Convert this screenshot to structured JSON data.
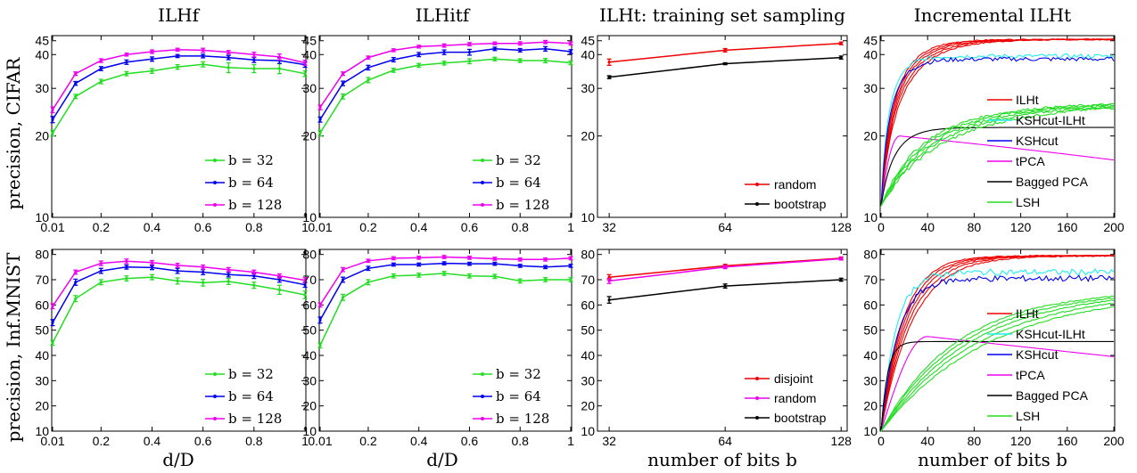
{
  "figure": {
    "column_titles": [
      "ILHf",
      "ILHitf",
      "ILHt: training set sampling",
      "Incremental ILHt"
    ],
    "row_labels": [
      "precision, CIFAR",
      "precision, Inf.MNIST"
    ],
    "xlabels": [
      "d/D",
      "d/D",
      "number of bits b",
      "number of bits b"
    ]
  },
  "colors": {
    "green": "#22dd22",
    "blue": "#0000ee",
    "magenta": "#ee00ee",
    "red": "#ee0000",
    "black": "#000000",
    "cyan": "#22eeee"
  },
  "chart_data": [
    {
      "id": "ilhf_cifar",
      "type": "line",
      "xlabel": "",
      "ylabel": "precision, CIFAR",
      "x": [
        0.01,
        0.1,
        0.2,
        0.3,
        0.4,
        0.5,
        0.6,
        0.7,
        0.8,
        0.9,
        1.0
      ],
      "xticks": [
        0.01,
        0.2,
        0.4,
        0.6,
        0.8,
        1
      ],
      "xticklabels": [
        "0.01",
        "0.2",
        "0.4",
        "0.6",
        "0.8",
        "1"
      ],
      "xlim": [
        0.01,
        1
      ],
      "ylim": [
        10,
        47
      ],
      "yscale": "log",
      "yticks": [
        10,
        20,
        30,
        40,
        45
      ],
      "yticklabels": [
        "10",
        "20",
        "30",
        "40",
        "45"
      ],
      "legend": "lower-right",
      "series": [
        {
          "name": "b = 32",
          "color": "#22dd22",
          "values": [
            20.5,
            28.0,
            31.8,
            34.0,
            34.8,
            36.0,
            36.8,
            35.8,
            35.5,
            35.5,
            34.0
          ],
          "err": [
            0.5,
            0.5,
            0.6,
            0.6,
            0.7,
            0.7,
            0.8,
            1.5,
            1.2,
            1.5,
            0.8
          ]
        },
        {
          "name": "b = 64",
          "color": "#0000ee",
          "values": [
            23.0,
            31.3,
            35.5,
            37.5,
            38.5,
            39.5,
            39.5,
            39.0,
            38.2,
            38.0,
            36.7
          ],
          "err": [
            0.6,
            0.5,
            0.6,
            0.7,
            0.7,
            0.5,
            0.6,
            0.7,
            0.8,
            0.9,
            0.8
          ]
        },
        {
          "name": "b = 128",
          "color": "#ee00ee",
          "values": [
            25.0,
            34.0,
            38.0,
            40.0,
            41.0,
            41.7,
            41.5,
            40.8,
            40.0,
            39.2,
            37.3
          ],
          "err": [
            0.6,
            0.5,
            0.6,
            0.5,
            0.6,
            0.5,
            0.7,
            0.6,
            0.8,
            1.0,
            0.8
          ]
        }
      ]
    },
    {
      "id": "ilhitf_cifar",
      "type": "line",
      "xlabel": "",
      "ylabel": "",
      "x": [
        0.01,
        0.1,
        0.2,
        0.3,
        0.4,
        0.5,
        0.6,
        0.7,
        0.8,
        0.9,
        1.0
      ],
      "xticks": [
        0.01,
        0.2,
        0.4,
        0.6,
        0.8,
        1
      ],
      "xticklabels": [
        "0.01",
        "0.2",
        "0.4",
        "0.6",
        "0.8",
        "1"
      ],
      "xlim": [
        0.01,
        1
      ],
      "ylim": [
        10,
        47
      ],
      "yscale": "log",
      "yticks": [
        10,
        20,
        30,
        40,
        45
      ],
      "yticklabels": [
        "10",
        "20",
        "30",
        "40",
        "45"
      ],
      "legend": "lower-right",
      "series": [
        {
          "name": "b = 32",
          "color": "#22dd22",
          "values": [
            20.5,
            28.0,
            32.2,
            35.0,
            36.5,
            37.2,
            37.8,
            38.5,
            38.0,
            38.0,
            37.3
          ],
          "err": [
            0.5,
            0.6,
            0.7,
            0.6,
            0.6,
            0.6,
            0.8,
            0.6,
            0.6,
            0.7,
            0.6
          ]
        },
        {
          "name": "b = 64",
          "color": "#0000ee",
          "values": [
            23.0,
            31.3,
            35.8,
            38.3,
            40.0,
            40.8,
            40.8,
            42.0,
            41.5,
            42.0,
            41.0
          ],
          "err": [
            0.5,
            0.6,
            0.7,
            0.7,
            0.7,
            0.8,
            1.0,
            0.6,
            0.6,
            0.8,
            0.7
          ]
        },
        {
          "name": "b = 128",
          "color": "#ee00ee",
          "values": [
            25.5,
            34.0,
            39.0,
            41.5,
            42.8,
            43.2,
            43.7,
            44.0,
            44.0,
            44.5,
            44.0
          ],
          "err": [
            0.5,
            0.5,
            0.5,
            0.5,
            0.5,
            0.6,
            0.6,
            0.5,
            0.6,
            0.6,
            0.6
          ]
        }
      ]
    },
    {
      "id": "ilht_sampling_cifar",
      "type": "line",
      "xlabel": "",
      "ylabel": "",
      "x": [
        32,
        64,
        128
      ],
      "xscale": "log",
      "xticks": [
        32,
        64,
        128
      ],
      "xticklabels": [
        "32",
        "64",
        "128"
      ],
      "xlim": [
        30,
        132
      ],
      "ylim": [
        10,
        47
      ],
      "yscale": "log",
      "yticks": [
        10,
        20,
        30,
        40,
        45
      ],
      "yticklabels": [
        "10",
        "20",
        "30",
        "40",
        "45"
      ],
      "legend": "lower-right",
      "series": [
        {
          "name": "random",
          "color": "#ee0000",
          "values": [
            37.5,
            41.5,
            44.0
          ],
          "err": [
            1.0,
            0.6,
            0.5
          ]
        },
        {
          "name": "bootstrap",
          "color": "#000000",
          "values": [
            33.0,
            37.0,
            39.0
          ],
          "err": [
            0.4,
            0.3,
            0.5
          ]
        }
      ]
    },
    {
      "id": "incremental_cifar",
      "type": "line",
      "xlabel": "",
      "ylabel": "",
      "xlim": [
        0,
        200
      ],
      "xticks": [
        0,
        40,
        80,
        120,
        160,
        200
      ],
      "xticklabels": [
        "0",
        "40",
        "80",
        "120",
        "160",
        "200"
      ],
      "ylim": [
        10,
        47
      ],
      "yscale": "log",
      "yticks": [
        10,
        20,
        30,
        40,
        45
      ],
      "yticklabels": [
        "10",
        "20",
        "30",
        "40",
        "45"
      ],
      "legend": "right",
      "series": [
        {
          "name": "ILHt",
          "color": "#ee0000",
          "type": "saturating",
          "start": 11,
          "end": 45.5,
          "rate": 0.045,
          "runs": 5
        },
        {
          "name": "KSHcut-ILHt",
          "color": "#22eeee",
          "type": "saturating",
          "start": 11,
          "end": 39.5,
          "rate": 0.09,
          "runs": 1
        },
        {
          "name": "KSHcut",
          "color": "#0000ee",
          "type": "saturating",
          "start": 11,
          "end": 38.5,
          "rate": 0.08,
          "runs": 1
        },
        {
          "name": "tPCA",
          "color": "#ee00ee",
          "type": "peak",
          "start": 11,
          "peak": 20,
          "peak_at": 16,
          "end": 16.3
        },
        {
          "name": "Bagged PCA",
          "color": "#000000",
          "type": "saturating",
          "start": 11,
          "end": 21.5,
          "rate": 0.07,
          "runs": 1
        },
        {
          "name": "LSH",
          "color": "#22dd22",
          "type": "saturating",
          "start": 11,
          "end": 26.5,
          "rate": 0.016,
          "runs": 5
        }
      ]
    },
    {
      "id": "ilhf_mnist",
      "type": "line",
      "xlabel": "d/D",
      "ylabel": "precision, Inf.MNIST",
      "x": [
        0.01,
        0.1,
        0.2,
        0.3,
        0.4,
        0.5,
        0.6,
        0.7,
        0.8,
        0.9,
        1.0
      ],
      "xticks": [
        0.01,
        0.2,
        0.4,
        0.6,
        0.8,
        1
      ],
      "xticklabels": [
        "0.01",
        "0.2",
        "0.4",
        "0.6",
        "0.8",
        "1"
      ],
      "xlim": [
        0.01,
        1
      ],
      "ylim": [
        10,
        82
      ],
      "yticks": [
        10,
        20,
        30,
        40,
        50,
        60,
        70,
        80
      ],
      "yticklabels": [
        "10",
        "20",
        "30",
        "40",
        "50",
        "60",
        "70",
        "80"
      ],
      "legend": "lower-right",
      "series": [
        {
          "name": "b = 32",
          "color": "#22dd22",
          "values": [
            45.0,
            62.5,
            69.0,
            70.5,
            71.0,
            69.5,
            68.8,
            69.3,
            67.8,
            66.0,
            64.0
          ],
          "err": [
            1.0,
            1.2,
            1.0,
            1.0,
            1.0,
            1.2,
            1.3,
            1.2,
            1.2,
            1.8,
            1.5
          ]
        },
        {
          "name": "b = 64",
          "color": "#0000ee",
          "values": [
            53.0,
            69.0,
            73.5,
            75.0,
            74.8,
            73.5,
            73.0,
            72.0,
            71.5,
            70.0,
            68.0
          ],
          "err": [
            1.2,
            1.2,
            1.0,
            0.8,
            0.8,
            1.0,
            1.0,
            0.9,
            1.0,
            1.0,
            1.0
          ]
        },
        {
          "name": "b = 128",
          "color": "#ee00ee",
          "values": [
            59.5,
            73.0,
            76.5,
            77.3,
            76.8,
            75.7,
            75.0,
            74.0,
            73.0,
            71.5,
            69.8
          ],
          "err": [
            1.0,
            0.8,
            0.9,
            0.9,
            0.8,
            0.8,
            0.8,
            0.8,
            0.8,
            0.8,
            1.0
          ]
        }
      ]
    },
    {
      "id": "ilhitf_mnist",
      "type": "line",
      "xlabel": "d/D",
      "ylabel": "",
      "x": [
        0.01,
        0.1,
        0.2,
        0.3,
        0.4,
        0.5,
        0.6,
        0.7,
        0.8,
        0.9,
        1.0
      ],
      "xticks": [
        0.01,
        0.2,
        0.4,
        0.6,
        0.8,
        1
      ],
      "xticklabels": [
        "0.01",
        "0.2",
        "0.4",
        "0.6",
        "0.8",
        "1"
      ],
      "xlim": [
        0.01,
        1
      ],
      "ylim": [
        10,
        82
      ],
      "yticks": [
        10,
        20,
        30,
        40,
        50,
        60,
        70,
        80
      ],
      "yticklabels": [
        "10",
        "20",
        "30",
        "40",
        "50",
        "60",
        "70",
        "80"
      ],
      "legend": "lower-right",
      "series": [
        {
          "name": "b = 32",
          "color": "#22dd22",
          "values": [
            44.0,
            63.0,
            69.0,
            71.5,
            71.8,
            72.5,
            71.5,
            71.3,
            69.5,
            70.0,
            70.0
          ],
          "err": [
            1.0,
            1.2,
            1.0,
            0.8,
            0.8,
            0.8,
            0.8,
            0.8,
            0.8,
            0.8,
            0.8
          ]
        },
        {
          "name": "b = 64",
          "color": "#0000ee",
          "values": [
            54.0,
            70.0,
            74.5,
            76.0,
            76.0,
            76.5,
            76.3,
            76.3,
            75.5,
            75.0,
            75.5
          ],
          "err": [
            1.2,
            1.0,
            0.8,
            0.6,
            0.6,
            0.6,
            0.6,
            0.6,
            0.6,
            0.6,
            0.6
          ]
        },
        {
          "name": "b = 128",
          "color": "#ee00ee",
          "values": [
            60.0,
            74.0,
            77.5,
            78.5,
            78.7,
            79.0,
            78.7,
            78.3,
            78.0,
            78.0,
            78.5
          ],
          "err": [
            0.8,
            0.8,
            0.6,
            0.6,
            0.6,
            0.6,
            0.6,
            0.6,
            0.6,
            0.6,
            0.6
          ]
        }
      ]
    },
    {
      "id": "ilht_sampling_mnist",
      "type": "line",
      "xlabel": "number of bits b",
      "ylabel": "",
      "x": [
        32,
        64,
        128
      ],
      "xscale": "log",
      "xticks": [
        32,
        64,
        128
      ],
      "xticklabels": [
        "32",
        "64",
        "128"
      ],
      "xlim": [
        30,
        132
      ],
      "ylim": [
        10,
        82
      ],
      "yticks": [
        10,
        20,
        30,
        40,
        50,
        60,
        70,
        80
      ],
      "yticklabels": [
        "10",
        "20",
        "30",
        "40",
        "50",
        "60",
        "70",
        "80"
      ],
      "legend": "lower-right",
      "series": [
        {
          "name": "disjoint",
          "color": "#ee0000",
          "values": [
            71.0,
            75.5,
            78.5
          ],
          "err": [
            1.0,
            0.6,
            0.5
          ]
        },
        {
          "name": "random",
          "color": "#ee00ee",
          "values": [
            69.5,
            75.0,
            78.3
          ],
          "err": [
            1.0,
            0.6,
            0.5
          ]
        },
        {
          "name": "bootstrap",
          "color": "#000000",
          "values": [
            62.0,
            67.5,
            70.0
          ],
          "err": [
            1.3,
            0.8,
            0.6
          ]
        }
      ]
    },
    {
      "id": "incremental_mnist",
      "type": "line",
      "xlabel": "number of bits b",
      "ylabel": "",
      "xlim": [
        0,
        200
      ],
      "xticks": [
        0,
        40,
        80,
        120,
        160,
        200
      ],
      "xticklabels": [
        "0",
        "40",
        "80",
        "120",
        "160",
        "200"
      ],
      "ylim": [
        10,
        82
      ],
      "yticks": [
        10,
        20,
        30,
        40,
        50,
        60,
        70,
        80
      ],
      "yticklabels": [
        "10",
        "20",
        "30",
        "40",
        "50",
        "60",
        "70",
        "80"
      ],
      "legend": "right",
      "series": [
        {
          "name": "ILHt",
          "color": "#ee0000",
          "type": "saturating",
          "start": 10,
          "end": 79.5,
          "rate": 0.045,
          "runs": 5
        },
        {
          "name": "KSHcut-ILHt",
          "color": "#22eeee",
          "type": "saturating",
          "start": 10,
          "end": 73.0,
          "rate": 0.08,
          "runs": 1
        },
        {
          "name": "KSHcut",
          "color": "#0000ee",
          "type": "saturating",
          "start": 10,
          "end": 70.5,
          "rate": 0.07,
          "runs": 1
        },
        {
          "name": "tPCA",
          "color": "#ee00ee",
          "type": "peak",
          "start": 10,
          "peak": 47.5,
          "peak_at": 40,
          "end": 39.5
        },
        {
          "name": "Bagged PCA",
          "color": "#000000",
          "type": "saturating",
          "start": 10,
          "end": 45.5,
          "rate": 0.18,
          "runs": 1
        },
        {
          "name": "LSH",
          "color": "#22dd22",
          "type": "saturating",
          "start": 10,
          "end": 66.0,
          "rate": 0.013,
          "runs": 5
        }
      ]
    }
  ]
}
